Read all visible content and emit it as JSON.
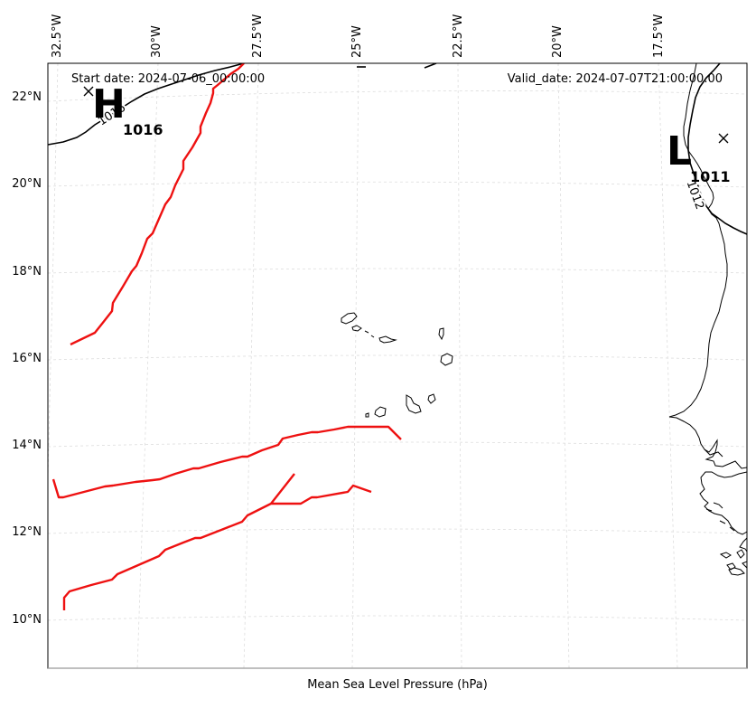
{
  "title": "",
  "start_date_label": "Start date: 2024-07-06_00:00:00",
  "valid_date_label": "Valid_date: 2024-07-07T21:00:00.00",
  "xlabel": "Mean Sea Level Pressure (hPa)",
  "lon_ticks": [
    {
      "lon": -32.5,
      "label": "32.5°W"
    },
    {
      "lon": -30.0,
      "label": "30°W"
    },
    {
      "lon": -27.5,
      "label": "27.5°W"
    },
    {
      "lon": -25.0,
      "label": "25°W"
    },
    {
      "lon": -22.5,
      "label": "22.5°W"
    },
    {
      "lon": -20.0,
      "label": "20°W"
    },
    {
      "lon": -17.5,
      "label": "17.5°W"
    }
  ],
  "lat_ticks": [
    {
      "lat": 22,
      "label": "22°N"
    },
    {
      "lat": 20,
      "label": "20°N"
    },
    {
      "lat": 18,
      "label": "18°N"
    },
    {
      "lat": 16,
      "label": "16°N"
    },
    {
      "lat": 14,
      "label": "14°N"
    },
    {
      "lat": 12,
      "label": "12°N"
    },
    {
      "lat": 10,
      "label": "10°N"
    }
  ],
  "pressure_centers": [
    {
      "type": "H",
      "value": "1016",
      "lon": -32.2,
      "lat": 22.1
    },
    {
      "type": "L",
      "value": "1011",
      "lon": -16.0,
      "lat": 21.0
    }
  ],
  "contour_labels": [
    {
      "text": "1016",
      "lon": -31.4,
      "lat": 21.6
    },
    {
      "text": "1012",
      "lon": -16.5,
      "lat": 19.6
    }
  ],
  "colors": {
    "trough_lines": "#ee1111",
    "contours": "#000000",
    "coastline": "#000000",
    "gridlines": "#dddddd",
    "frame": "#000000"
  }
}
